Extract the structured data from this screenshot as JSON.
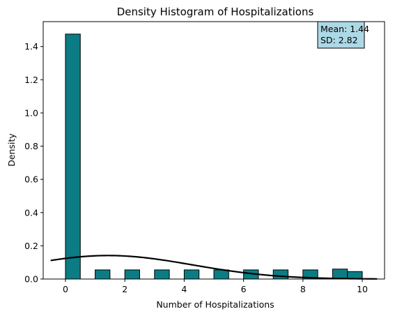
{
  "chart_data": {
    "type": "bar",
    "title": "Density Histogram of Hospitalizations",
    "xlabel": "Number of Hospitalizations",
    "ylabel": "Density",
    "xlim": [
      -0.75,
      10.75
    ],
    "ylim": [
      0,
      1.55
    ],
    "xticks": [
      0,
      2,
      4,
      6,
      8,
      10
    ],
    "yticks": [
      0.0,
      0.2,
      0.4,
      0.6,
      0.8,
      1.0,
      1.2,
      1.4
    ],
    "bar_color": "#0c7c84",
    "bar_edge_color": "#000000",
    "bars": [
      {
        "x0": 0.0,
        "x1": 0.5,
        "density": 1.475
      },
      {
        "x0": 1.0,
        "x1": 1.5,
        "density": 0.055
      },
      {
        "x0": 2.0,
        "x1": 2.5,
        "density": 0.055
      },
      {
        "x0": 3.0,
        "x1": 3.5,
        "density": 0.055
      },
      {
        "x0": 4.0,
        "x1": 4.5,
        "density": 0.055
      },
      {
        "x0": 5.0,
        "x1": 5.5,
        "density": 0.055
      },
      {
        "x0": 6.0,
        "x1": 6.5,
        "density": 0.055
      },
      {
        "x0": 7.0,
        "x1": 7.5,
        "density": 0.055
      },
      {
        "x0": 8.0,
        "x1": 8.5,
        "density": 0.055
      },
      {
        "x0": 9.0,
        "x1": 9.5,
        "density": 0.06
      },
      {
        "x0": 9.5,
        "x1": 10.0,
        "density": 0.045
      }
    ],
    "curve": {
      "mean": 1.44,
      "sd": 2.82,
      "x_range": [
        -0.5,
        10.5
      ],
      "color": "#000000"
    },
    "annotation": {
      "lines": [
        "Mean: 1.44",
        "SD: 2.82"
      ],
      "background": "#add8e6",
      "placement": "top-right"
    }
  }
}
